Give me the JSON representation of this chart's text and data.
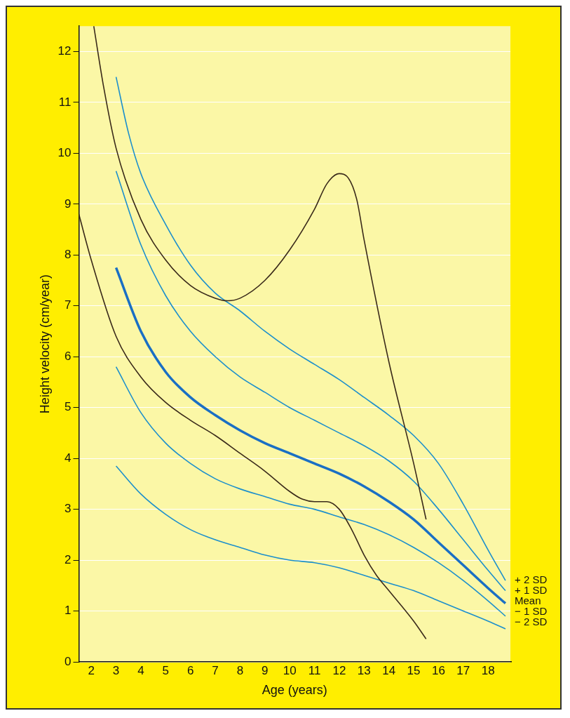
{
  "chart_data": {
    "type": "line",
    "xlabel": "Age (years)",
    "ylabel": "Height velocity (cm/year)",
    "xlim": [
      1.5,
      18.9
    ],
    "xticks": [
      2,
      3,
      4,
      5,
      6,
      7,
      8,
      9,
      10,
      11,
      12,
      13,
      14,
      15,
      16,
      17,
      18
    ],
    "ylim": [
      0,
      12.5
    ],
    "yticks": [
      0,
      1,
      2,
      3,
      4,
      5,
      6,
      7,
      8,
      9,
      10,
      11,
      12
    ],
    "grid": "y",
    "marker": "none",
    "line_style": "solid",
    "series": [
      {
        "color": "#3a2a1a",
        "x": [
          2.1,
          2.5,
          3,
          4,
          5,
          6,
          7,
          7.5,
          8,
          9,
          10,
          11,
          11.5,
          12,
          12.3,
          12.7,
          13,
          14,
          15,
          15.5
        ],
        "values": [
          12.5,
          11.3,
          10.1,
          8.7,
          7.9,
          7.4,
          7.15,
          7.1,
          7.15,
          7.5,
          8.1,
          8.9,
          9.4,
          9.6,
          9.55,
          9.1,
          8.3,
          5.9,
          3.9,
          2.8
        ]
      },
      {
        "color": "#3a2a1a",
        "x": [
          1.5,
          2,
          3,
          4,
          5,
          6,
          7,
          8,
          9,
          10,
          10.5,
          11,
          11.5,
          12,
          12.5,
          13,
          13.5,
          14,
          15,
          15.5
        ],
        "values": [
          8.8,
          7.9,
          6.4,
          5.6,
          5.1,
          4.75,
          4.45,
          4.1,
          3.75,
          3.35,
          3.2,
          3.15,
          3.15,
          3.0,
          2.6,
          2.1,
          1.7,
          1.4,
          0.8,
          0.45
        ]
      },
      {
        "name": "+ 2 SD",
        "color": "#1c8fcc",
        "x": [
          3,
          3.5,
          4,
          5,
          6,
          7,
          8,
          9,
          10,
          11,
          12,
          13,
          14,
          15,
          16,
          17,
          18,
          18.7
        ],
        "values": [
          11.5,
          10.4,
          9.6,
          8.6,
          7.8,
          7.25,
          6.9,
          6.5,
          6.15,
          5.85,
          5.55,
          5.2,
          4.85,
          4.45,
          3.9,
          3.1,
          2.2,
          1.6
        ]
      },
      {
        "name": "+ 1 SD",
        "color": "#1c8fcc",
        "x": [
          3,
          4,
          5,
          6,
          7,
          8,
          9,
          10,
          11,
          12,
          13,
          14,
          15,
          16,
          17,
          18,
          18.7
        ],
        "values": [
          9.65,
          8.2,
          7.2,
          6.5,
          6.0,
          5.6,
          5.3,
          5.0,
          4.75,
          4.5,
          4.25,
          3.95,
          3.55,
          3.0,
          2.4,
          1.8,
          1.4
        ]
      },
      {
        "name": "Mean",
        "color": "#1a6fc4",
        "x": [
          3,
          4,
          5,
          6,
          7,
          8,
          9,
          10,
          11,
          12,
          13,
          14,
          15,
          16,
          17,
          18,
          18.7
        ],
        "values": [
          7.75,
          6.5,
          5.7,
          5.2,
          4.85,
          4.55,
          4.3,
          4.1,
          3.9,
          3.7,
          3.45,
          3.15,
          2.8,
          2.35,
          1.9,
          1.45,
          1.15
        ]
      },
      {
        "name": "− 1 SD",
        "color": "#1c8fcc",
        "x": [
          3,
          4,
          5,
          6,
          7,
          8,
          9,
          10,
          11,
          12,
          13,
          14,
          15,
          16,
          17,
          18,
          18.7
        ],
        "values": [
          5.8,
          4.9,
          4.3,
          3.9,
          3.6,
          3.4,
          3.25,
          3.1,
          3.0,
          2.85,
          2.7,
          2.5,
          2.25,
          1.95,
          1.6,
          1.2,
          0.9
        ]
      },
      {
        "name": "− 2 SD",
        "color": "#1c8fcc",
        "x": [
          3,
          4,
          5,
          6,
          7,
          8,
          9,
          10,
          11,
          12,
          13,
          14,
          15,
          16,
          17,
          18,
          18.7
        ],
        "values": [
          3.85,
          3.3,
          2.9,
          2.6,
          2.4,
          2.25,
          2.1,
          2.0,
          1.95,
          1.85,
          1.7,
          1.55,
          1.4,
          1.2,
          1.0,
          0.8,
          0.65
        ]
      }
    ]
  }
}
